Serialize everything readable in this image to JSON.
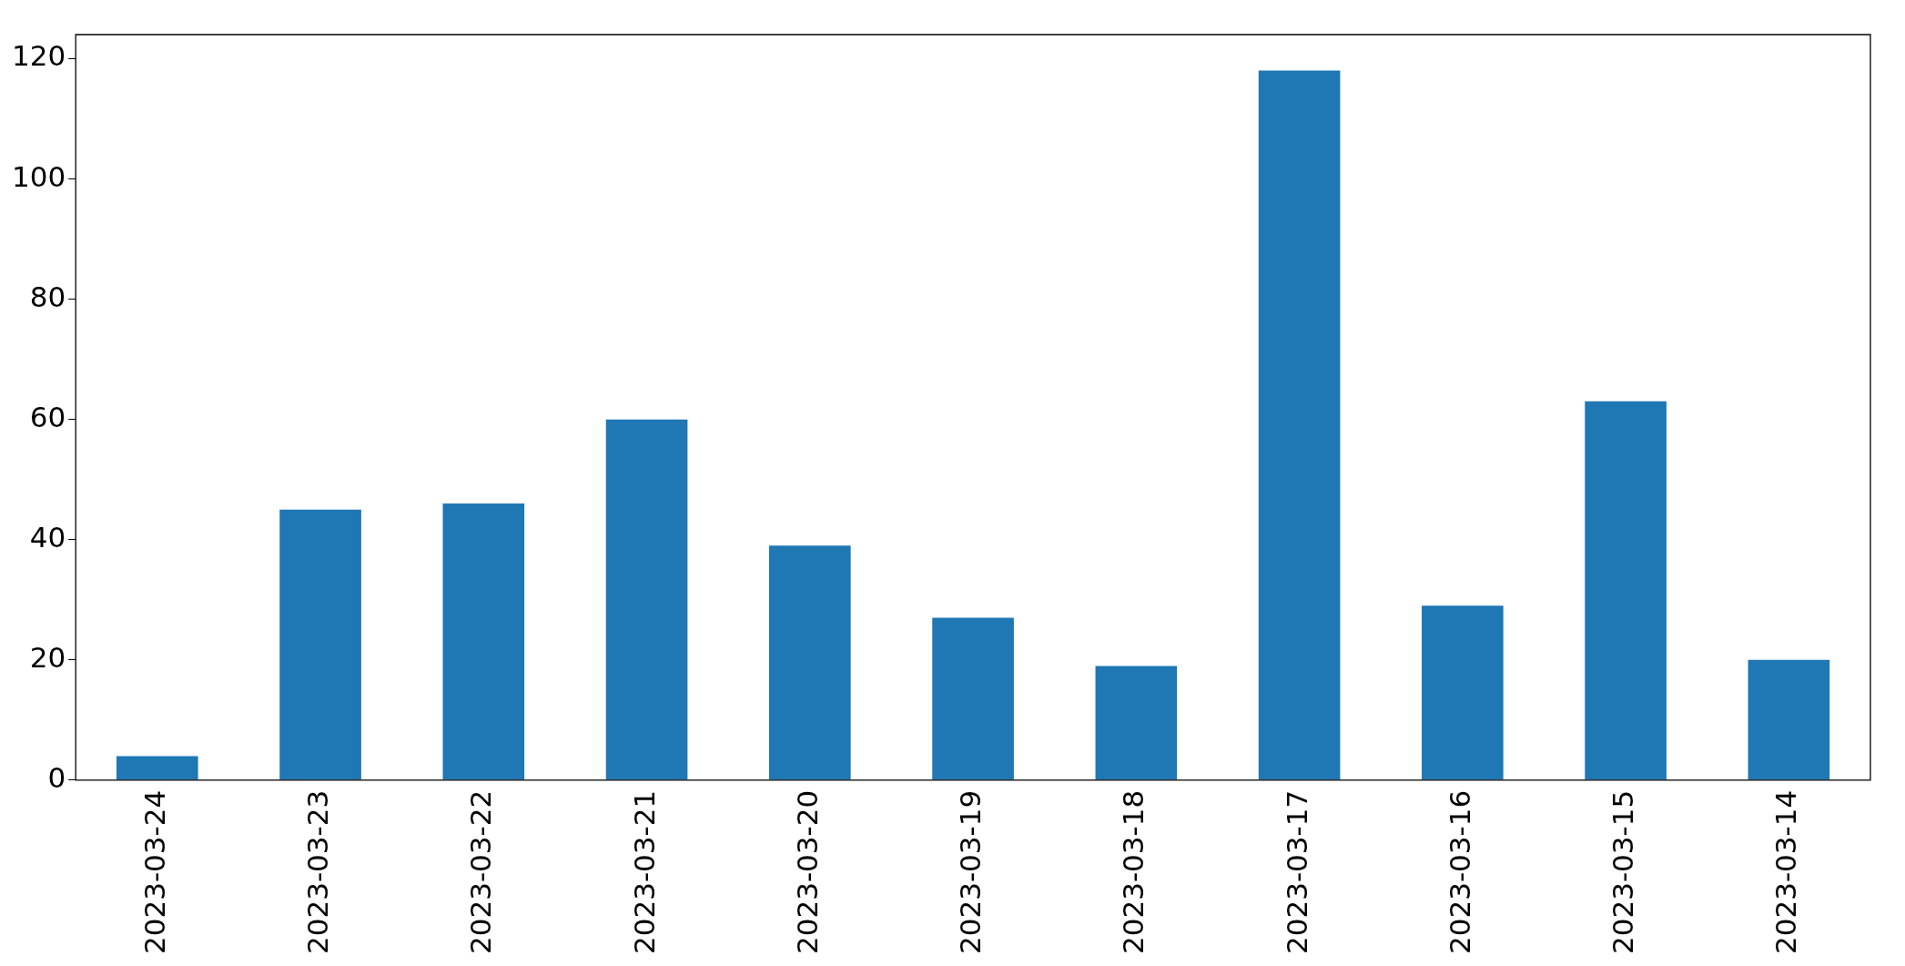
{
  "chart_data": {
    "type": "bar",
    "categories": [
      "2023-03-24",
      "2023-03-23",
      "2023-03-22",
      "2023-03-21",
      "2023-03-20",
      "2023-03-19",
      "2023-03-18",
      "2023-03-17",
      "2023-03-16",
      "2023-03-15",
      "2023-03-14"
    ],
    "values": [
      4,
      45,
      46,
      60,
      39,
      27,
      19,
      118,
      29,
      63,
      20
    ],
    "color": "#1f77b4",
    "ylim": [
      0,
      124
    ],
    "yticks": [
      0,
      20,
      40,
      60,
      80,
      100,
      120
    ],
    "grid": false,
    "legend": false
  }
}
